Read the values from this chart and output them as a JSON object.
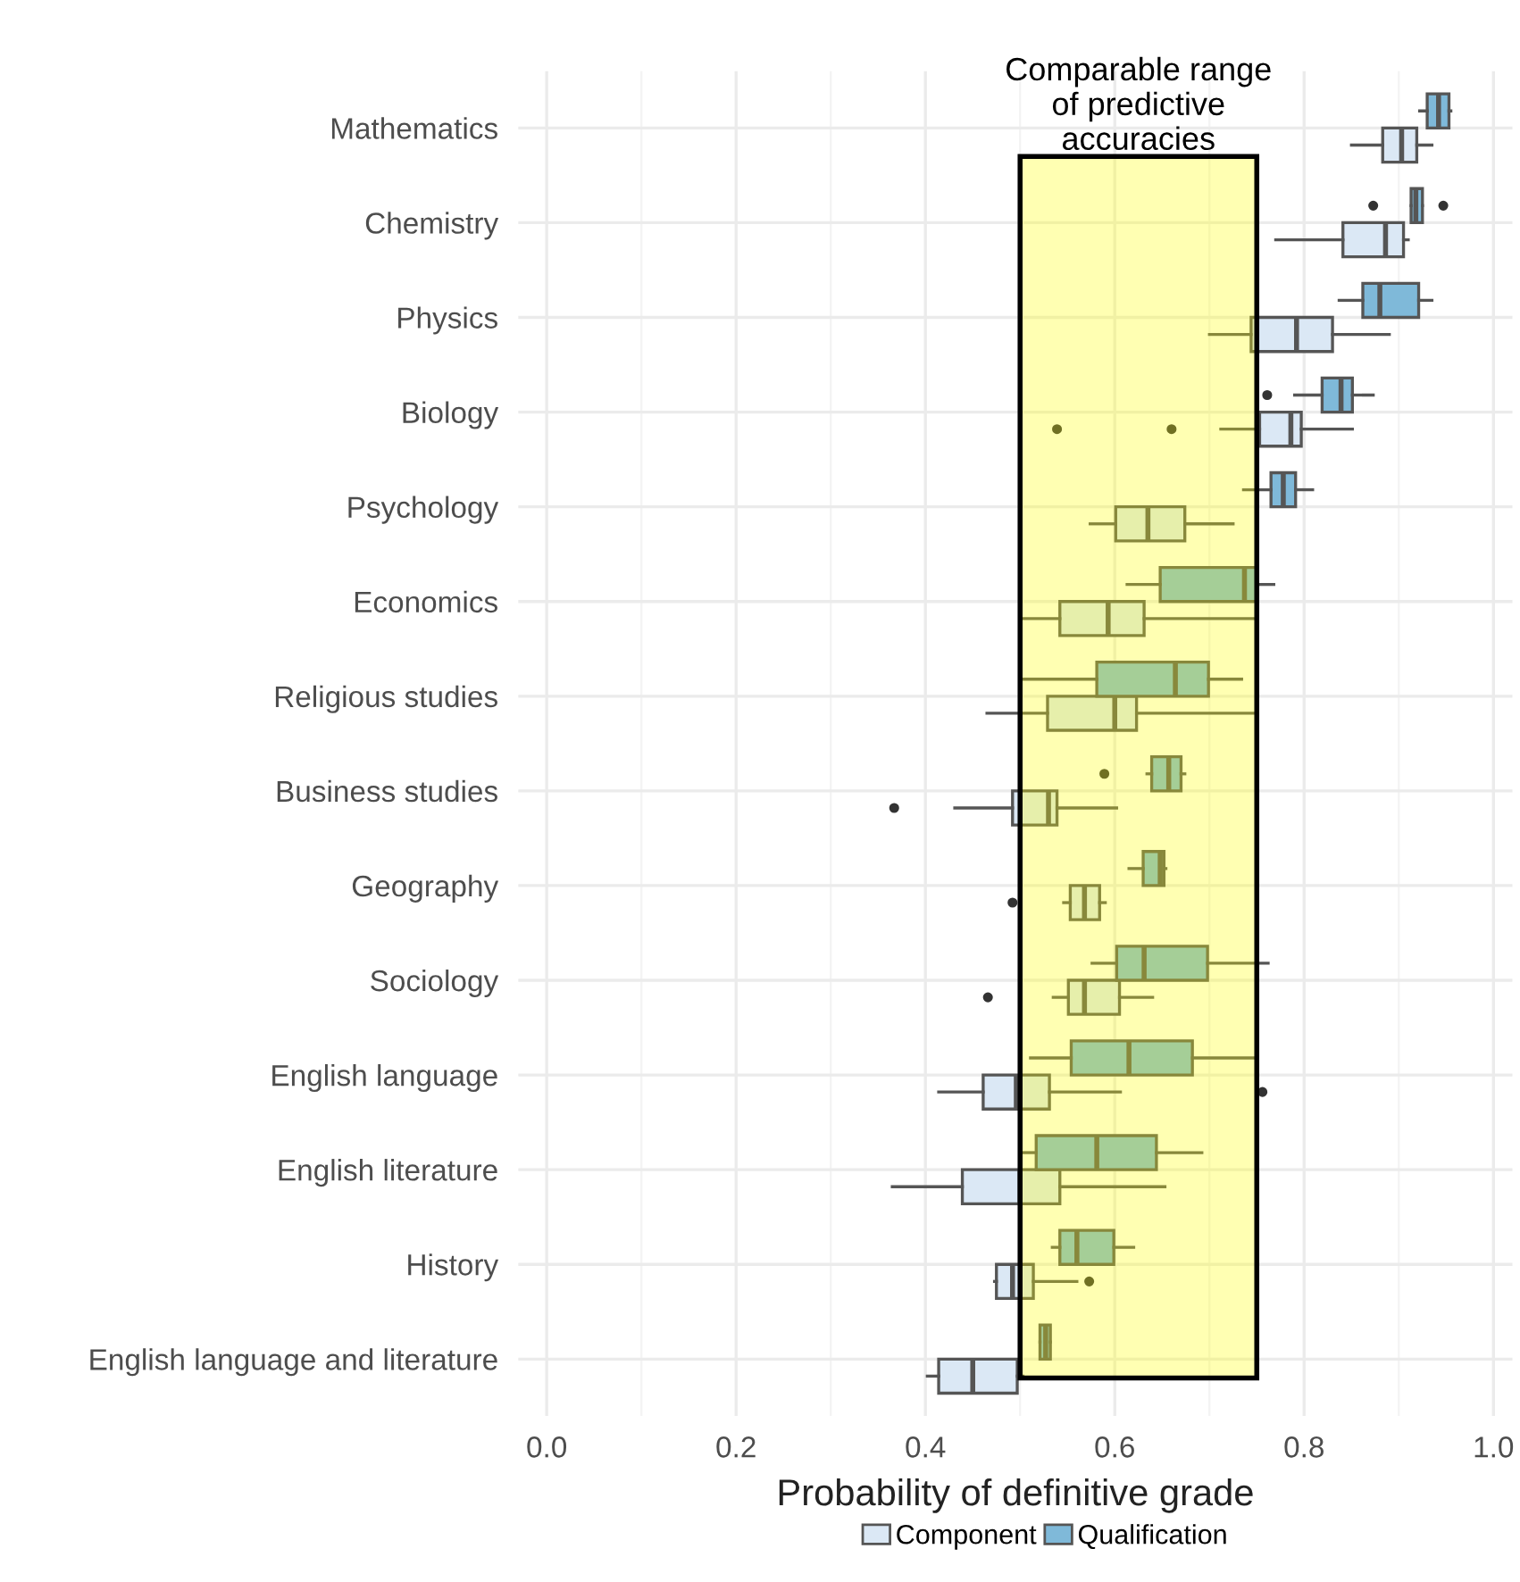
{
  "chart_data": {
    "type": "box",
    "orientation": "horizontal",
    "xlabel": "Probability of definitive grade",
    "categories": [
      "Mathematics",
      "Chemistry",
      "Physics",
      "Biology",
      "Psychology",
      "Economics",
      "Religious studies",
      "Business studies",
      "Geography",
      "Sociology",
      "English language",
      "English literature",
      "History",
      "English language and literature"
    ],
    "series": [
      {
        "name": "Component",
        "color": "#dbe8f5",
        "boxes": [
          {
            "low": 0.85,
            "q1": 0.883,
            "median": 0.903,
            "q3": 0.919,
            "high": 0.935
          },
          {
            "low": 0.77,
            "q1": 0.841,
            "median": 0.886,
            "q3": 0.905,
            "high": 0.91
          },
          {
            "low": 0.7,
            "q1": 0.744,
            "median": 0.792,
            "q3": 0.83,
            "high": 0.89
          },
          {
            "low": 0.712,
            "q1": 0.753,
            "median": 0.786,
            "q3": 0.797,
            "high": 0.851,
            "outliers": [
              0.539,
              0.66
            ]
          },
          {
            "low": 0.574,
            "q1": 0.601,
            "median": 0.635,
            "q3": 0.674,
            "high": 0.725
          },
          {
            "low": 0.5,
            "q1": 0.542,
            "median": 0.593,
            "q3": 0.631,
            "high": 0.75
          },
          {
            "low": 0.465,
            "q1": 0.529,
            "median": 0.6,
            "q3": 0.623,
            "high": 0.747
          },
          {
            "low": 0.431,
            "q1": 0.492,
            "median": 0.53,
            "q3": 0.539,
            "high": 0.602,
            "outliers": [
              0.367
            ]
          },
          {
            "low": 0.546,
            "q1": 0.553,
            "median": 0.568,
            "q3": 0.584,
            "high": 0.59,
            "outliers": [
              0.492
            ]
          },
          {
            "low": 0.535,
            "q1": 0.551,
            "median": 0.568,
            "q3": 0.605,
            "high": 0.64,
            "outliers": [
              0.466
            ]
          },
          {
            "low": 0.414,
            "q1": 0.461,
            "median": 0.496,
            "q3": 0.531,
            "high": 0.606,
            "outliers": [
              0.756
            ]
          },
          {
            "low": 0.365,
            "q1": 0.439,
            "median": 0.5,
            "q3": 0.542,
            "high": 0.653
          },
          {
            "low": 0.473,
            "q1": 0.475,
            "median": 0.492,
            "q3": 0.514,
            "high": 0.56,
            "outliers": [
              0.573
            ]
          },
          {
            "low": 0.402,
            "q1": 0.414,
            "median": 0.45,
            "q3": 0.497,
            "high": 0.503
          }
        ]
      },
      {
        "name": "Qualification",
        "color": "#7fb9d9",
        "boxes": [
          {
            "low": 0.922,
            "q1": 0.93,
            "median": 0.942,
            "q3": 0.953,
            "high": 0.955
          },
          {
            "low": 0.913,
            "q1": 0.913,
            "median": 0.918,
            "q3": 0.925,
            "high": 0.925,
            "outliers": [
              0.873,
              0.947
            ]
          },
          {
            "low": 0.837,
            "q1": 0.862,
            "median": 0.88,
            "q3": 0.921,
            "high": 0.935
          },
          {
            "low": 0.79,
            "q1": 0.819,
            "median": 0.839,
            "q3": 0.851,
            "high": 0.873,
            "outliers": [
              0.761
            ]
          },
          {
            "low": 0.736,
            "q1": 0.765,
            "median": 0.778,
            "q3": 0.791,
            "high": 0.809
          },
          {
            "low": 0.613,
            "q1": 0.648,
            "median": 0.737,
            "q3": 0.75,
            "high": 0.768
          },
          {
            "low": 0.503,
            "q1": 0.581,
            "median": 0.664,
            "q3": 0.699,
            "high": 0.734
          },
          {
            "low": 0.634,
            "q1": 0.639,
            "median": 0.657,
            "q3": 0.67,
            "high": 0.674,
            "outliers": [
              0.589
            ]
          },
          {
            "low": 0.615,
            "q1": 0.63,
            "median": 0.648,
            "q3": 0.652,
            "high": 0.654
          },
          {
            "low": 0.576,
            "q1": 0.602,
            "median": 0.631,
            "q3": 0.698,
            "high": 0.762
          },
          {
            "low": 0.511,
            "q1": 0.554,
            "median": 0.615,
            "q3": 0.682,
            "high": 0.747
          },
          {
            "low": 0.503,
            "q1": 0.517,
            "median": 0.581,
            "q3": 0.644,
            "high": 0.692
          },
          {
            "low": 0.534,
            "q1": 0.542,
            "median": 0.56,
            "q3": 0.599,
            "high": 0.62
          },
          {
            "low": 0.521,
            "q1": 0.521,
            "median": 0.527,
            "q3": 0.532,
            "high": 0.532
          }
        ]
      }
    ],
    "xlim": [
      -0.03,
      1.02
    ],
    "xticks": [
      {
        "value": 0,
        "label": "0.0"
      },
      0.2,
      0.4,
      0.6,
      0.8,
      {
        "value": 1,
        "label": "1.0"
      }
    ],
    "bands": [
      {
        "axis": "x",
        "from": 0.5,
        "to": 0.75,
        "label": "Comparable range\nof predictive\naccuracies",
        "color": "#ffff00"
      }
    ],
    "grid": true,
    "legend": "bottom"
  }
}
